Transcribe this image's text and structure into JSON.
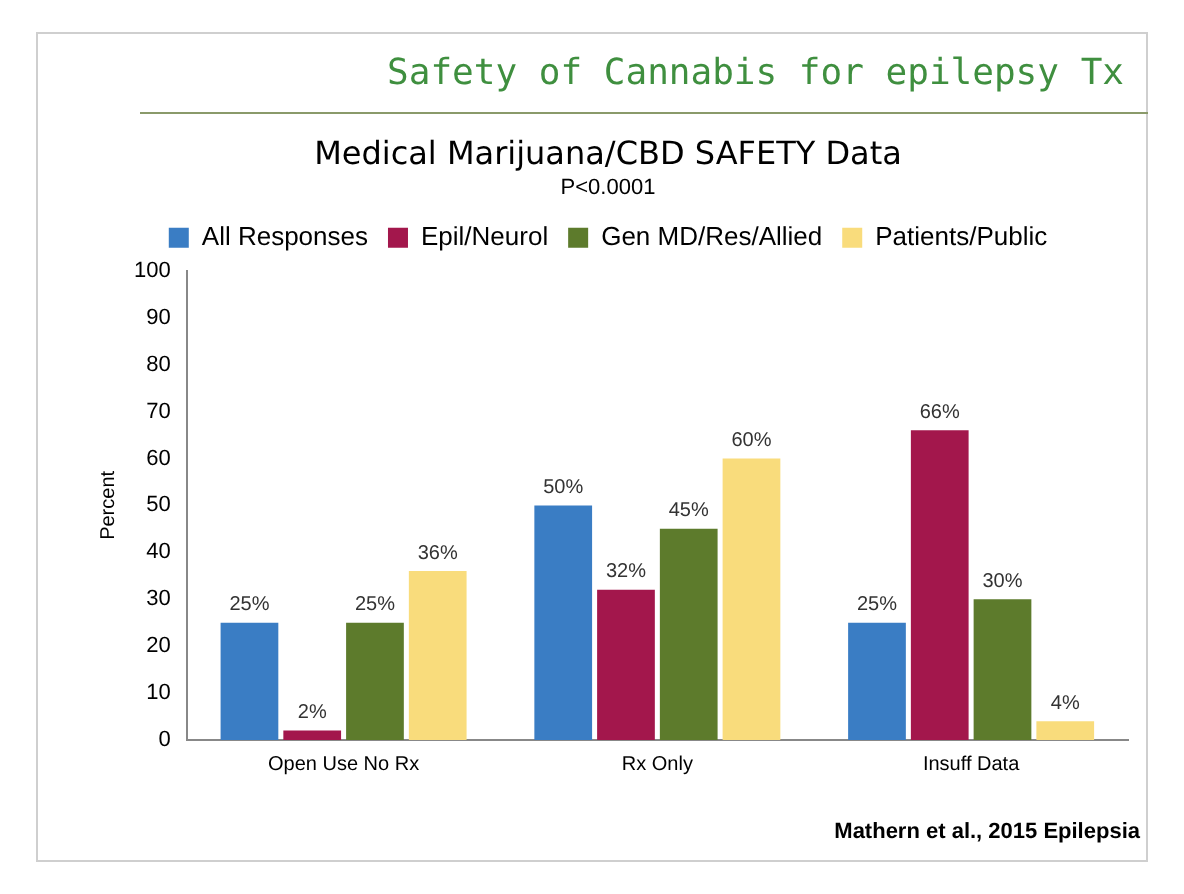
{
  "chart_data": {
    "type": "bar",
    "title": "Medical Marijuana/CBD SAFETY Data",
    "subtitle": "P<0.0001",
    "ylabel": "Percent",
    "categories": [
      "Open Use No Rx",
      "Rx Only",
      "Insuff Data"
    ],
    "series": [
      {
        "name": "All Responses",
        "color": "#3a7dc4",
        "values": [
          25,
          50,
          25
        ],
        "value_labels": [
          "25%",
          "50%",
          "25%"
        ]
      },
      {
        "name": "Epil/Neurol",
        "color": "#a3174c",
        "values": [
          2,
          32,
          66
        ],
        "value_labels": [
          "2%",
          "32%",
          "66%"
        ]
      },
      {
        "name": "Gen MD/Res/Allied",
        "color": "#5d7b2c",
        "values": [
          25,
          45,
          30
        ],
        "value_labels": [
          "25%",
          "45%",
          "30%"
        ]
      },
      {
        "name": "Patients/Public",
        "color": "#f9dc7c",
        "values": [
          36,
          60,
          4
        ],
        "value_labels": [
          "36%",
          "60%",
          "4%"
        ]
      }
    ],
    "ylim": [
      0,
      100
    ],
    "yticks": [
      0,
      10,
      20,
      30,
      40,
      50,
      60,
      70,
      80,
      90,
      100
    ],
    "grid": false,
    "legend": "top",
    "annotations": [
      "Safety of Cannabis for epilepsy Tx",
      "Mathern et al., 2015 Epilepsia"
    ]
  }
}
